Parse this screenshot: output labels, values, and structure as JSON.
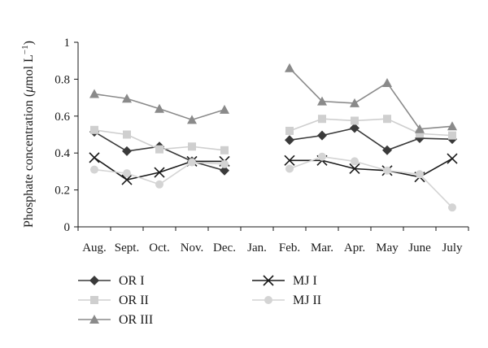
{
  "chart_data": {
    "type": "line",
    "ylabel_main": "Phosphate concentration (",
    "ylabel_mu": "μ",
    "ylabel_unit": "mol L",
    "ylabel_exp": "−1",
    "ylabel_close": ")",
    "ylim": [
      0,
      1
    ],
    "yticks": [
      "0",
      "0.2",
      "0.4",
      "0.6",
      "0.8",
      "1"
    ],
    "categories": [
      "Aug.",
      "Sept.",
      "Oct.",
      "Nov.",
      "Dec.",
      "Jan.",
      "Feb.",
      "Mar.",
      "Apr.",
      "May",
      "June",
      "July"
    ],
    "grid": false,
    "legend_position": "bottom",
    "series": [
      {
        "name": "OR I",
        "marker": "diamond",
        "color": "#3a3a3a",
        "values": [
          0.515,
          0.41,
          0.435,
          0.355,
          0.305,
          null,
          0.47,
          0.495,
          0.535,
          0.415,
          0.48,
          0.475
        ]
      },
      {
        "name": "OR II",
        "marker": "square",
        "color": "#cfcfcf",
        "values": [
          0.525,
          0.5,
          0.42,
          0.435,
          0.415,
          null,
          0.52,
          0.585,
          0.575,
          0.585,
          0.505,
          0.495
        ]
      },
      {
        "name": "OR III",
        "marker": "triangle",
        "color": "#8a8a8a",
        "values": [
          0.72,
          0.695,
          0.64,
          0.58,
          0.635,
          null,
          0.86,
          0.68,
          0.67,
          0.78,
          0.53,
          0.545
        ]
      },
      {
        "name": "MJ I",
        "marker": "x",
        "color": "#1a1a1a",
        "values": [
          0.375,
          0.255,
          0.295,
          0.355,
          0.355,
          null,
          0.36,
          0.36,
          0.315,
          0.305,
          0.27,
          0.37
        ]
      },
      {
        "name": "MJ II",
        "marker": "circle",
        "color": "#d4d4d4",
        "values": [
          0.31,
          0.29,
          0.23,
          0.35,
          0.34,
          null,
          0.315,
          0.38,
          0.355,
          0.305,
          0.285,
          0.105
        ]
      }
    ]
  }
}
